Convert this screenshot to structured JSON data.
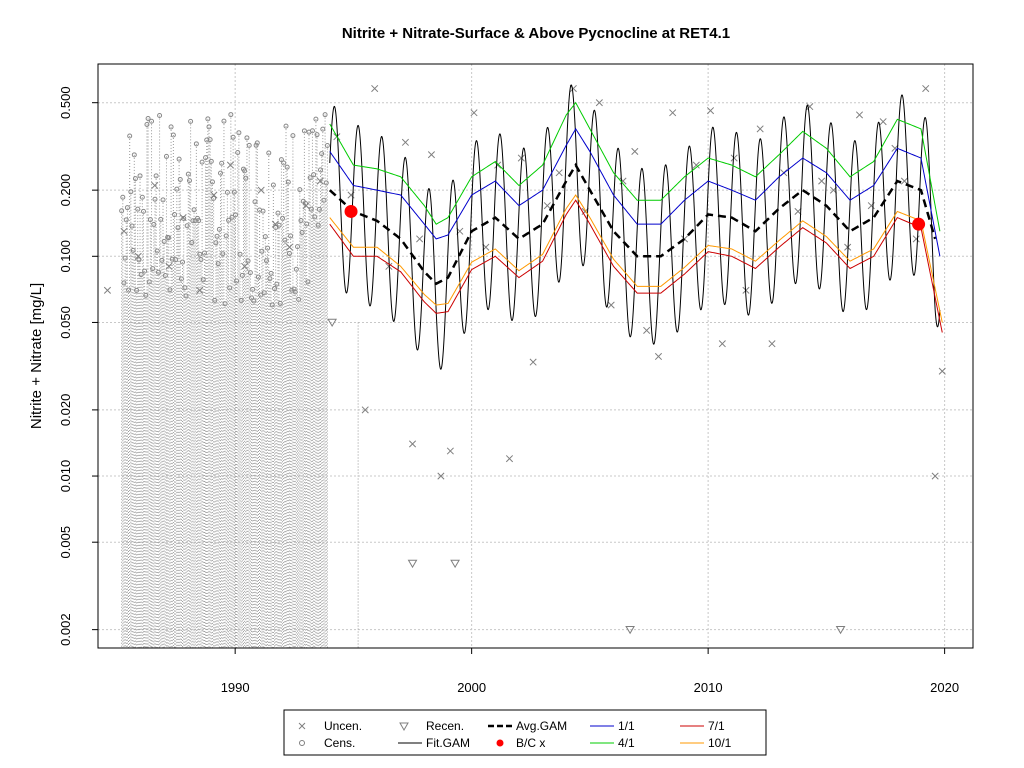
{
  "chart_data": {
    "type": "line",
    "title": "Nitrite + Nitrate-Surface & Above Pycnocline at RET4.1",
    "xlabel": "",
    "ylabel": "Nitrite + Nitrate [mg/L]",
    "y_scale": "log",
    "xlim": [
      1984.2,
      2021.2
    ],
    "ylim": [
      0.00165,
      0.75
    ],
    "x_ticks": [
      1990,
      2000,
      2010,
      2020
    ],
    "x_tick_labels": [
      "1990",
      "2000",
      "2010",
      "2020"
    ],
    "y_ticks": [
      0.002,
      0.005,
      0.01,
      0.02,
      0.05,
      0.1,
      0.2,
      0.5
    ],
    "y_tick_labels": [
      "0.002",
      "0.005",
      "0.010",
      "0.020",
      "0.050",
      "0.100",
      "0.200",
      "0.500"
    ],
    "grid": true,
    "legend_position": "bottom",
    "legend": [
      {
        "label": "Uncen.",
        "symbol": "x",
        "color": "#7f7f7f"
      },
      {
        "label": "Cens.",
        "symbol": "circle",
        "color": "#7f7f7f"
      },
      {
        "label": "Recen.",
        "symbol": "triangle-down",
        "color": "#7f7f7f"
      },
      {
        "label": "Fit.GAM",
        "symbol": "line",
        "color": "#000000"
      },
      {
        "label": "Avg.GAM",
        "symbol": "dashed-line",
        "color": "#000000"
      },
      {
        "label": "B/C x",
        "symbol": "dot",
        "color": "#ff0000"
      },
      {
        "label": "1/1",
        "symbol": "line",
        "color": "#0000cc"
      },
      {
        "label": "4/1",
        "symbol": "line",
        "color": "#00cc00"
      },
      {
        "label": "7/1",
        "symbol": "line",
        "color": "#cc0000"
      },
      {
        "label": "10/1",
        "symbol": "line",
        "color": "#ff9900"
      }
    ],
    "series": [
      {
        "name": "Avg.GAM",
        "color": "#000000",
        "x": [
          1994.0,
          1995.0,
          1996.0,
          1997.0,
          1998.0,
          1998.5,
          1999.0,
          2000.0,
          2001.0,
          2002.0,
          2003.0,
          2004.0,
          2004.4,
          2005.0,
          2006.0,
          2007.0,
          2008.0,
          2009.0,
          2010.0,
          2011.0,
          2012.0,
          2013.0,
          2014.0,
          2015.0,
          2016.0,
          2017.0,
          2018.0,
          2019.0,
          2019.6
        ],
        "y": [
          0.2,
          0.16,
          0.145,
          0.12,
          0.085,
          0.075,
          0.08,
          0.13,
          0.15,
          0.12,
          0.14,
          0.22,
          0.26,
          0.2,
          0.13,
          0.1,
          0.1,
          0.12,
          0.155,
          0.15,
          0.13,
          0.165,
          0.2,
          0.17,
          0.13,
          0.15,
          0.22,
          0.2,
          0.12
        ]
      },
      {
        "name": "1/1",
        "color": "#0000cc",
        "x": [
          1994.0,
          1995.0,
          1996.0,
          1997.0,
          1998.0,
          1998.5,
          1999.0,
          2000.0,
          2001.0,
          2002.0,
          2003.0,
          2004.0,
          2004.4,
          2005.0,
          2006.0,
          2007.0,
          2008.0,
          2009.0,
          2010.0,
          2011.0,
          2012.0,
          2013.0,
          2014.0,
          2015.0,
          2016.0,
          2017.0,
          2018.0,
          2019.0,
          2019.8
        ],
        "y": [
          0.3,
          0.21,
          0.2,
          0.19,
          0.14,
          0.12,
          0.125,
          0.19,
          0.22,
          0.17,
          0.2,
          0.32,
          0.38,
          0.3,
          0.19,
          0.14,
          0.14,
          0.18,
          0.22,
          0.2,
          0.18,
          0.23,
          0.28,
          0.24,
          0.18,
          0.21,
          0.31,
          0.28,
          0.1
        ]
      },
      {
        "name": "4/1",
        "color": "#00cc00",
        "x": [
          1994.0,
          1995.0,
          1996.0,
          1997.0,
          1998.0,
          1998.5,
          1999.0,
          2000.0,
          2001.0,
          2002.0,
          2003.0,
          2004.0,
          2004.4,
          2005.0,
          2006.0,
          2007.0,
          2008.0,
          2009.0,
          2010.0,
          2011.0,
          2012.0,
          2013.0,
          2014.0,
          2015.0,
          2016.0,
          2017.0,
          2018.0,
          2019.0,
          2019.8
        ],
        "y": [
          0.4,
          0.26,
          0.25,
          0.23,
          0.17,
          0.14,
          0.15,
          0.23,
          0.27,
          0.21,
          0.26,
          0.44,
          0.5,
          0.38,
          0.24,
          0.18,
          0.18,
          0.23,
          0.28,
          0.26,
          0.23,
          0.29,
          0.37,
          0.31,
          0.23,
          0.27,
          0.42,
          0.38,
          0.13
        ]
      },
      {
        "name": "7/1",
        "color": "#cc0000",
        "x": [
          1994.0,
          1995.0,
          1996.0,
          1997.0,
          1998.0,
          1998.5,
          1999.0,
          2000.0,
          2001.0,
          2002.0,
          2003.0,
          2004.0,
          2004.4,
          2005.0,
          2006.0,
          2007.0,
          2008.0,
          2009.0,
          2010.0,
          2011.0,
          2012.0,
          2013.0,
          2014.0,
          2015.0,
          2016.0,
          2017.0,
          2018.0,
          2019.0,
          2019.9
        ],
        "y": [
          0.14,
          0.1,
          0.1,
          0.085,
          0.062,
          0.055,
          0.056,
          0.087,
          0.1,
          0.08,
          0.095,
          0.155,
          0.18,
          0.14,
          0.09,
          0.068,
          0.068,
          0.083,
          0.105,
          0.1,
          0.088,
          0.11,
          0.135,
          0.115,
          0.088,
          0.1,
          0.15,
          0.135,
          0.045
        ]
      },
      {
        "name": "10/1",
        "color": "#ff9900",
        "x": [
          1994.0,
          1995.0,
          1996.0,
          1997.0,
          1998.0,
          1998.5,
          1999.0,
          2000.0,
          2001.0,
          2002.0,
          2003.0,
          2004.0,
          2004.4,
          2005.0,
          2006.0,
          2007.0,
          2008.0,
          2009.0,
          2010.0,
          2011.0,
          2012.0,
          2013.0,
          2014.0,
          2015.0,
          2016.0,
          2017.0,
          2018.0,
          2019.0,
          2019.9
        ],
        "y": [
          0.15,
          0.11,
          0.11,
          0.09,
          0.067,
          0.06,
          0.061,
          0.094,
          0.108,
          0.086,
          0.102,
          0.165,
          0.19,
          0.15,
          0.097,
          0.073,
          0.073,
          0.089,
          0.112,
          0.108,
          0.095,
          0.118,
          0.145,
          0.123,
          0.095,
          0.108,
          0.16,
          0.145,
          0.05
        ]
      }
    ],
    "fit_gam": {
      "name": "Fit.GAM",
      "color": "#000000",
      "x_start": 1994.0,
      "x_end": 2019.8,
      "cycles_per_year": 1,
      "peak_phase": 0.2,
      "amplitude_log10": 0.4,
      "center_series": "Avg.GAM"
    },
    "bc_points": {
      "name": "B/C x",
      "color": "#ff0000",
      "x": [
        1994.9,
        2018.9
      ],
      "y": [
        0.16,
        0.14
      ]
    },
    "uncensored": {
      "name": "Uncen.",
      "color": "#7f7f7f",
      "x": [
        1984.6,
        1985.3,
        1985.9,
        1986.6,
        1987.2,
        1987.8,
        1988.5,
        1989.1,
        1989.8,
        1990.4,
        1991.1,
        1991.7,
        1992.3,
        1993.0,
        1993.6,
        1994.3,
        1994.9,
        1995.5,
        1995.9,
        1996.5,
        1997.2,
        1997.5,
        1997.8,
        1998.3,
        1998.7,
        1999.1,
        1999.5,
        2000.1,
        2000.6,
        2001.1,
        2001.6,
        2002.1,
        2002.6,
        2003.2,
        2003.7,
        2004.3,
        2004.8,
        2005.4,
        2005.9,
        2006.4,
        2006.9,
        2007.4,
        2007.9,
        2008.5,
        2009.0,
        2009.5,
        2010.1,
        2010.6,
        2011.1,
        2011.6,
        2012.2,
        2012.7,
        2013.2,
        2013.8,
        2014.3,
        2014.8,
        2015.3,
        2015.9,
        2016.4,
        2016.9,
        2017.4,
        2017.9,
        2018.3,
        2018.8,
        2019.2,
        2019.6,
        2019.9
      ],
      "y": [
        0.07,
        0.13,
        0.1,
        0.21,
        0.09,
        0.15,
        0.07,
        0.19,
        0.26,
        0.09,
        0.2,
        0.14,
        0.11,
        0.17,
        0.22,
        0.35,
        0.19,
        0.02,
        0.58,
        0.09,
        0.33,
        0.014,
        0.12,
        0.29,
        0.01,
        0.013,
        0.13,
        0.45,
        0.11,
        0.26,
        0.012,
        0.28,
        0.033,
        0.17,
        0.24,
        0.58,
        0.16,
        0.5,
        0.06,
        0.22,
        0.3,
        0.046,
        0.035,
        0.45,
        0.12,
        0.26,
        0.46,
        0.04,
        0.28,
        0.07,
        0.38,
        0.04,
        0.24,
        0.16,
        0.48,
        0.22,
        0.2,
        0.11,
        0.44,
        0.17,
        0.41,
        0.31,
        0.22,
        0.12,
        0.58,
        0.01,
        0.03
      ]
    },
    "censored_count": 180,
    "recensored": {
      "name": "Recen.",
      "color": "#7f7f7f",
      "x": [
        1994.1,
        1997.5,
        1999.3,
        2006.7,
        2015.6
      ],
      "y": [
        0.05,
        0.004,
        0.004,
        0.002,
        0.002
      ]
    }
  }
}
